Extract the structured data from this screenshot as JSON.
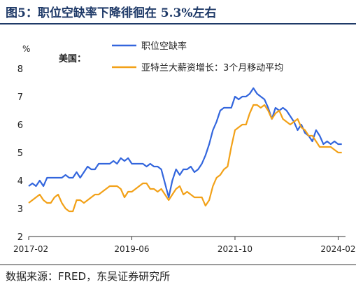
{
  "header": {
    "title": "图5：职位空缺率下降徘徊在 5.3%左右"
  },
  "footer": {
    "source": "数据来源：FRED，东吴证券研究所"
  },
  "chart_data": {
    "type": "line",
    "title": "图5：职位空缺率下降徘徊在 5.3%左右",
    "ylabel": "%",
    "region_label": "美国：",
    "ylim": [
      2,
      8
    ],
    "yticks": [
      2,
      3,
      4,
      5,
      6,
      7,
      8
    ],
    "xlim": [
      "2017-02",
      "2024-04"
    ],
    "xticks": [
      "2017-02",
      "2019-06",
      "2021-10",
      "2024-02"
    ],
    "grid": false,
    "legend_position": "top",
    "series": [
      {
        "name": "职位空缺率",
        "color": "#3366dd",
        "points": [
          [
            "2017-02",
            3.8
          ],
          [
            "2017-03",
            3.9
          ],
          [
            "2017-04",
            3.8
          ],
          [
            "2017-05",
            4.0
          ],
          [
            "2017-06",
            3.8
          ],
          [
            "2017-07",
            4.1
          ],
          [
            "2017-08",
            4.1
          ],
          [
            "2017-09",
            4.1
          ],
          [
            "2017-10",
            4.1
          ],
          [
            "2017-11",
            4.1
          ],
          [
            "2017-12",
            4.2
          ],
          [
            "2018-01",
            4.1
          ],
          [
            "2018-02",
            4.1
          ],
          [
            "2018-03",
            4.3
          ],
          [
            "2018-04",
            4.1
          ],
          [
            "2018-05",
            4.3
          ],
          [
            "2018-06",
            4.5
          ],
          [
            "2018-07",
            4.4
          ],
          [
            "2018-08",
            4.4
          ],
          [
            "2018-09",
            4.6
          ],
          [
            "2018-10",
            4.6
          ],
          [
            "2018-11",
            4.6
          ],
          [
            "2018-12",
            4.6
          ],
          [
            "2019-01",
            4.7
          ],
          [
            "2019-02",
            4.6
          ],
          [
            "2019-03",
            4.8
          ],
          [
            "2019-04",
            4.7
          ],
          [
            "2019-05",
            4.8
          ],
          [
            "2019-06",
            4.6
          ],
          [
            "2019-07",
            4.6
          ],
          [
            "2019-08",
            4.6
          ],
          [
            "2019-09",
            4.6
          ],
          [
            "2019-10",
            4.5
          ],
          [
            "2019-11",
            4.6
          ],
          [
            "2019-12",
            4.5
          ],
          [
            "2020-01",
            4.5
          ],
          [
            "2020-02",
            4.4
          ],
          [
            "2020-03",
            3.9
          ],
          [
            "2020-04",
            3.4
          ],
          [
            "2020-05",
            4.0
          ],
          [
            "2020-06",
            4.4
          ],
          [
            "2020-07",
            4.2
          ],
          [
            "2020-08",
            4.4
          ],
          [
            "2020-09",
            4.4
          ],
          [
            "2020-10",
            4.5
          ],
          [
            "2020-11",
            4.3
          ],
          [
            "2020-12",
            4.4
          ],
          [
            "2021-01",
            4.6
          ],
          [
            "2021-02",
            4.9
          ],
          [
            "2021-03",
            5.3
          ],
          [
            "2021-04",
            5.8
          ],
          [
            "2021-05",
            6.1
          ],
          [
            "2021-06",
            6.5
          ],
          [
            "2021-07",
            6.6
          ],
          [
            "2021-08",
            6.6
          ],
          [
            "2021-09",
            6.6
          ],
          [
            "2021-10",
            7.0
          ],
          [
            "2021-11",
            6.9
          ],
          [
            "2021-12",
            7.0
          ],
          [
            "2022-01",
            7.0
          ],
          [
            "2022-02",
            7.1
          ],
          [
            "2022-03",
            7.3
          ],
          [
            "2022-04",
            7.1
          ],
          [
            "2022-05",
            7.0
          ],
          [
            "2022-06",
            6.9
          ],
          [
            "2022-07",
            6.6
          ],
          [
            "2022-08",
            6.2
          ],
          [
            "2022-09",
            6.6
          ],
          [
            "2022-10",
            6.5
          ],
          [
            "2022-11",
            6.6
          ],
          [
            "2022-12",
            6.5
          ],
          [
            "2023-01",
            6.3
          ],
          [
            "2023-02",
            6.1
          ],
          [
            "2023-03",
            5.8
          ],
          [
            "2023-04",
            6.0
          ],
          [
            "2023-05",
            5.7
          ],
          [
            "2023-06",
            5.6
          ],
          [
            "2023-07",
            5.4
          ],
          [
            "2023-08",
            5.8
          ],
          [
            "2023-09",
            5.6
          ],
          [
            "2023-10",
            5.3
          ],
          [
            "2023-11",
            5.4
          ],
          [
            "2023-12",
            5.3
          ],
          [
            "2024-01",
            5.4
          ],
          [
            "2024-02",
            5.3
          ],
          [
            "2024-03",
            5.3
          ]
        ]
      },
      {
        "name": "亚特兰大薪资增长：3个月移动平均",
        "color": "#f2a118",
        "points": [
          [
            "2017-02",
            3.2
          ],
          [
            "2017-03",
            3.3
          ],
          [
            "2017-04",
            3.4
          ],
          [
            "2017-05",
            3.5
          ],
          [
            "2017-06",
            3.3
          ],
          [
            "2017-07",
            3.2
          ],
          [
            "2017-08",
            3.2
          ],
          [
            "2017-09",
            3.4
          ],
          [
            "2017-10",
            3.5
          ],
          [
            "2017-11",
            3.2
          ],
          [
            "2017-12",
            3.0
          ],
          [
            "2018-01",
            2.9
          ],
          [
            "2018-02",
            2.9
          ],
          [
            "2018-03",
            3.3
          ],
          [
            "2018-04",
            3.3
          ],
          [
            "2018-05",
            3.2
          ],
          [
            "2018-06",
            3.3
          ],
          [
            "2018-07",
            3.4
          ],
          [
            "2018-08",
            3.5
          ],
          [
            "2018-09",
            3.5
          ],
          [
            "2018-10",
            3.6
          ],
          [
            "2018-11",
            3.7
          ],
          [
            "2018-12",
            3.8
          ],
          [
            "2019-01",
            3.8
          ],
          [
            "2019-02",
            3.8
          ],
          [
            "2019-03",
            3.7
          ],
          [
            "2019-04",
            3.4
          ],
          [
            "2019-05",
            3.6
          ],
          [
            "2019-06",
            3.6
          ],
          [
            "2019-07",
            3.7
          ],
          [
            "2019-08",
            3.8
          ],
          [
            "2019-09",
            3.9
          ],
          [
            "2019-10",
            3.9
          ],
          [
            "2019-11",
            3.7
          ],
          [
            "2019-12",
            3.7
          ],
          [
            "2020-01",
            3.6
          ],
          [
            "2020-02",
            3.7
          ],
          [
            "2020-03",
            3.5
          ],
          [
            "2020-04",
            3.3
          ],
          [
            "2020-05",
            3.5
          ],
          [
            "2020-06",
            3.7
          ],
          [
            "2020-07",
            3.8
          ],
          [
            "2020-08",
            3.5
          ],
          [
            "2020-09",
            3.6
          ],
          [
            "2020-10",
            3.5
          ],
          [
            "2020-11",
            3.4
          ],
          [
            "2020-12",
            3.4
          ],
          [
            "2021-01",
            3.4
          ],
          [
            "2021-02",
            3.1
          ],
          [
            "2021-03",
            3.3
          ],
          [
            "2021-04",
            3.8
          ],
          [
            "2021-05",
            4.1
          ],
          [
            "2021-06",
            4.2
          ],
          [
            "2021-07",
            4.4
          ],
          [
            "2021-08",
            4.5
          ],
          [
            "2021-09",
            5.2
          ],
          [
            "2021-10",
            5.8
          ],
          [
            "2021-11",
            5.9
          ],
          [
            "2021-12",
            6.0
          ],
          [
            "2022-01",
            6.0
          ],
          [
            "2022-02",
            6.4
          ],
          [
            "2022-03",
            6.7
          ],
          [
            "2022-04",
            6.7
          ],
          [
            "2022-05",
            6.6
          ],
          [
            "2022-06",
            6.7
          ],
          [
            "2022-07",
            6.5
          ],
          [
            "2022-08",
            6.2
          ],
          [
            "2022-09",
            6.4
          ],
          [
            "2022-10",
            6.5
          ],
          [
            "2022-11",
            6.2
          ],
          [
            "2022-12",
            6.1
          ],
          [
            "2023-01",
            6.0
          ],
          [
            "2023-02",
            6.1
          ],
          [
            "2023-03",
            6.2
          ],
          [
            "2023-04",
            5.9
          ],
          [
            "2023-05",
            5.8
          ],
          [
            "2023-06",
            5.6
          ],
          [
            "2023-07",
            5.6
          ],
          [
            "2023-08",
            5.4
          ],
          [
            "2023-09",
            5.2
          ],
          [
            "2023-10",
            5.2
          ],
          [
            "2023-11",
            5.2
          ],
          [
            "2023-12",
            5.2
          ],
          [
            "2024-01",
            5.1
          ],
          [
            "2024-02",
            5.0
          ],
          [
            "2024-03",
            5.0
          ]
        ]
      }
    ]
  }
}
